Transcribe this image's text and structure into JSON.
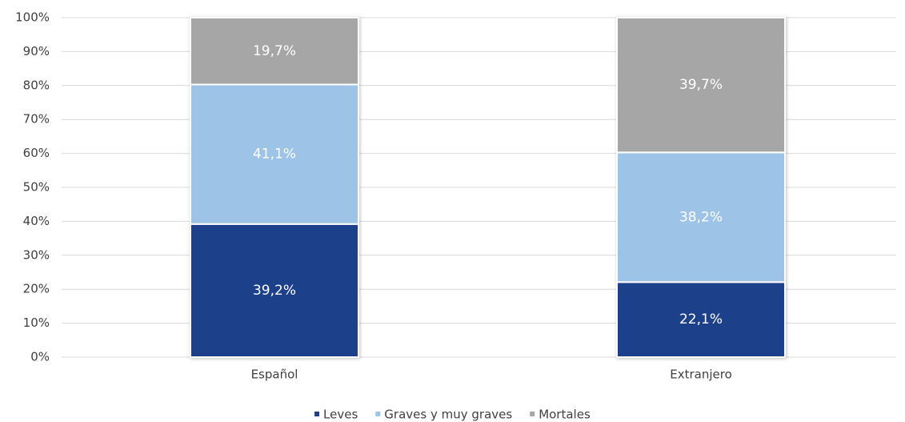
{
  "chart_data": {
    "type": "stacked_bar",
    "categories": [
      "Español",
      "Extranjero"
    ],
    "series": [
      {
        "name": "Leves",
        "color": "#1f3f8a",
        "values": [
          39.2,
          22.1
        ],
        "value_labels": [
          "39,2%",
          "22,1%"
        ]
      },
      {
        "name": "Graves y muy graves",
        "color": "#9dc3e6",
        "values": [
          41.1,
          38.2
        ],
        "value_labels": [
          "41,1%",
          "38,2%"
        ]
      },
      {
        "name": "Mortales",
        "color": "#a6a6a6",
        "values": [
          19.7,
          39.7
        ],
        "value_labels": [
          "19,7%",
          "39,7%"
        ]
      }
    ],
    "ylim": [
      0,
      100
    ],
    "yticks": [
      {
        "value": 0,
        "label": "0%"
      },
      {
        "value": 10,
        "label": "10%"
      },
      {
        "value": 20,
        "label": "20%"
      },
      {
        "value": 30,
        "label": "30%"
      },
      {
        "value": 40,
        "label": "40%"
      },
      {
        "value": 50,
        "label": "50%"
      },
      {
        "value": 60,
        "label": "60%"
      },
      {
        "value": 70,
        "label": "70%"
      },
      {
        "value": 80,
        "label": "80%"
      },
      {
        "value": 90,
        "label": "90%"
      },
      {
        "value": 100,
        "label": "100%"
      }
    ],
    "grid": true,
    "legend": "bottom"
  }
}
